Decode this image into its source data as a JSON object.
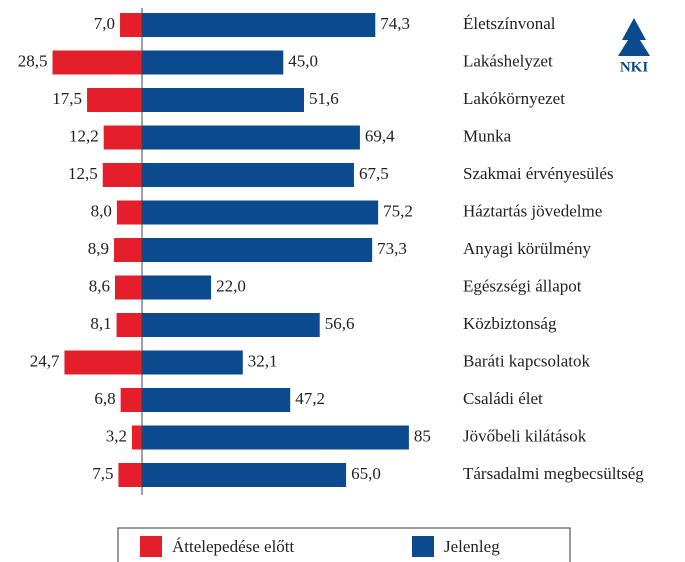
{
  "chart_data": {
    "type": "diverging-bar",
    "logo": "NKI",
    "categories": [
      "Életszínvonal",
      "Lakáshelyzet",
      "Lakókörnyezet",
      "Munka",
      "Szakmai érvényesülés",
      "Háztartás jövedelme",
      "Anyagi körülmény",
      "Egészségi állapot",
      "Közbiztonság",
      "Baráti kapcsolatok",
      "Családi élet",
      "Jövőbeli kilátások",
      "Társadalmi megbecsültség"
    ],
    "series": [
      {
        "name": "Áttelepedése előtt",
        "color": "#e41f2b",
        "values": [
          7.0,
          28.5,
          17.5,
          12.2,
          12.5,
          8.0,
          8.9,
          8.6,
          8.1,
          24.7,
          6.8,
          3.2,
          7.5
        ],
        "value_labels": [
          "7,0",
          "28,5",
          "17,5",
          "12,2",
          "12,5",
          "8,0",
          "8,9",
          "8,6",
          "8,1",
          "24,7",
          "6,8",
          "3,2",
          "7,5"
        ]
      },
      {
        "name": "Jelenleg",
        "color": "#0b4a8e",
        "values": [
          74.3,
          45.0,
          51.6,
          69.4,
          67.5,
          75.2,
          73.3,
          22.0,
          56.6,
          32.1,
          47.2,
          85,
          65.0
        ],
        "value_labels": [
          "74,3",
          "45,0",
          "51,6",
          "69,4",
          "67,5",
          "75,2",
          "73,3",
          "22,0",
          "56,6",
          "32,1",
          "47,2",
          "85",
          "65,0"
        ]
      }
    ]
  }
}
